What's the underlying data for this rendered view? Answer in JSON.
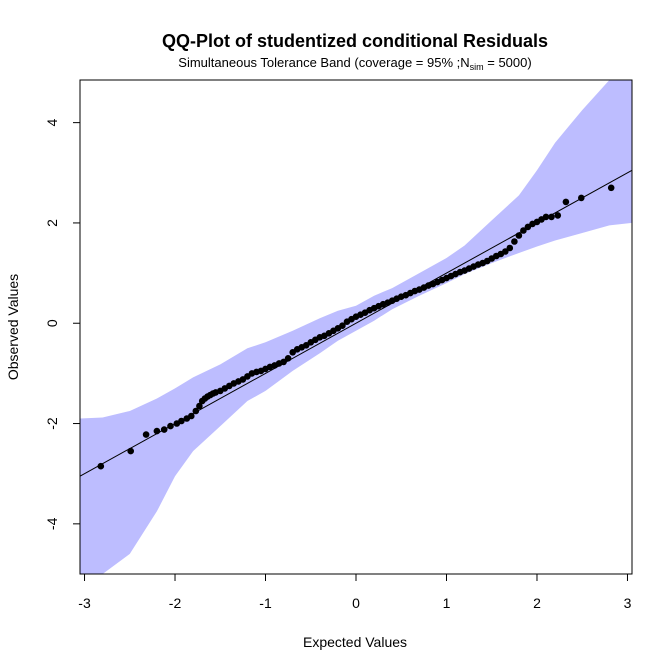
{
  "chart_data": {
    "type": "scatter",
    "title": "QQ-Plot of studentized conditional Residuals",
    "subtitle": {
      "prefix": "Simultaneous Tolerance Band (coverage = 95% ;N",
      "subscript": "sim",
      "suffix": " = 5000)"
    },
    "xlabel": "Expected Values",
    "ylabel": "Observed Values",
    "xlim": [
      -3.05,
      3.05
    ],
    "ylim": [
      -5.0,
      4.85
    ],
    "x_ticks": [
      -3,
      -2,
      -1,
      0,
      1,
      2,
      3
    ],
    "y_ticks": [
      -4,
      -2,
      0,
      2,
      4
    ],
    "grid": false,
    "legend": "none",
    "colors": {
      "band": "#bdbdff",
      "points": "#000000",
      "reference_line": "#000000"
    },
    "reference_line": {
      "from": [
        -3.05,
        -3.05
      ],
      "to": [
        3.05,
        3.05
      ]
    },
    "tolerance_band": {
      "x": [
        -3.05,
        -2.8,
        -2.5,
        -2.2,
        -2.0,
        -1.8,
        -1.5,
        -1.2,
        -1.0,
        -0.7,
        -0.4,
        -0.2,
        0.0,
        0.2,
        0.4,
        0.7,
        1.0,
        1.2,
        1.5,
        1.8,
        2.0,
        2.2,
        2.5,
        2.8,
        3.05
      ],
      "lower": [
        -5.0,
        -5.0,
        -4.6,
        -3.75,
        -3.05,
        -2.55,
        -2.05,
        -1.55,
        -1.35,
        -0.95,
        -0.6,
        -0.35,
        -0.15,
        0.05,
        0.28,
        0.55,
        0.8,
        0.98,
        1.2,
        1.4,
        1.53,
        1.65,
        1.8,
        1.95,
        2.0
      ],
      "upper": [
        -1.9,
        -1.88,
        -1.75,
        -1.5,
        -1.3,
        -1.08,
        -0.82,
        -0.5,
        -0.38,
        -0.15,
        0.1,
        0.25,
        0.35,
        0.55,
        0.7,
        1.0,
        1.3,
        1.55,
        2.05,
        2.55,
        3.05,
        3.6,
        4.25,
        4.85,
        4.85
      ]
    },
    "points": {
      "x": [
        -2.82,
        -2.49,
        -2.32,
        -2.2,
        -2.12,
        -2.05,
        -1.98,
        -1.93,
        -1.87,
        -1.82,
        -1.77,
        -1.73,
        -1.7,
        -1.67,
        -1.64,
        -1.61,
        -1.58,
        -1.55,
        -1.5,
        -1.45,
        -1.4,
        -1.35,
        -1.3,
        -1.25,
        -1.2,
        -1.15,
        -1.1,
        -1.05,
        -1.0,
        -0.95,
        -0.9,
        -0.85,
        -0.8,
        -0.75,
        -0.7,
        -0.65,
        -0.6,
        -0.55,
        -0.5,
        -0.45,
        -0.4,
        -0.35,
        -0.3,
        -0.25,
        -0.2,
        -0.15,
        -0.1,
        -0.05,
        0.0,
        0.05,
        0.1,
        0.15,
        0.2,
        0.25,
        0.3,
        0.35,
        0.4,
        0.45,
        0.5,
        0.55,
        0.6,
        0.65,
        0.7,
        0.75,
        0.8,
        0.85,
        0.9,
        0.95,
        1.0,
        1.05,
        1.1,
        1.15,
        1.2,
        1.25,
        1.3,
        1.35,
        1.4,
        1.45,
        1.5,
        1.55,
        1.6,
        1.65,
        1.7,
        1.75,
        1.8,
        1.85,
        1.9,
        1.95,
        2.0,
        2.05,
        2.1,
        2.16,
        2.23,
        2.32,
        2.49,
        2.82
      ],
      "y": [
        -2.85,
        -2.55,
        -2.22,
        -2.15,
        -2.12,
        -2.05,
        -2.0,
        -1.95,
        -1.9,
        -1.85,
        -1.75,
        -1.65,
        -1.55,
        -1.5,
        -1.46,
        -1.43,
        -1.4,
        -1.38,
        -1.35,
        -1.3,
        -1.25,
        -1.2,
        -1.16,
        -1.12,
        -1.06,
        -1.0,
        -0.97,
        -0.95,
        -0.91,
        -0.87,
        -0.84,
        -0.8,
        -0.77,
        -0.7,
        -0.58,
        -0.52,
        -0.48,
        -0.44,
        -0.38,
        -0.33,
        -0.28,
        -0.25,
        -0.2,
        -0.15,
        -0.1,
        -0.05,
        0.03,
        0.08,
        0.13,
        0.17,
        0.21,
        0.26,
        0.3,
        0.34,
        0.38,
        0.41,
        0.45,
        0.49,
        0.53,
        0.56,
        0.6,
        0.64,
        0.67,
        0.71,
        0.75,
        0.78,
        0.82,
        0.86,
        0.9,
        0.94,
        0.98,
        1.02,
        1.05,
        1.09,
        1.13,
        1.17,
        1.2,
        1.24,
        1.29,
        1.34,
        1.38,
        1.43,
        1.5,
        1.63,
        1.75,
        1.85,
        1.92,
        1.98,
        2.02,
        2.07,
        2.12,
        2.12,
        2.15,
        2.42,
        2.5,
        2.7
      ]
    }
  }
}
